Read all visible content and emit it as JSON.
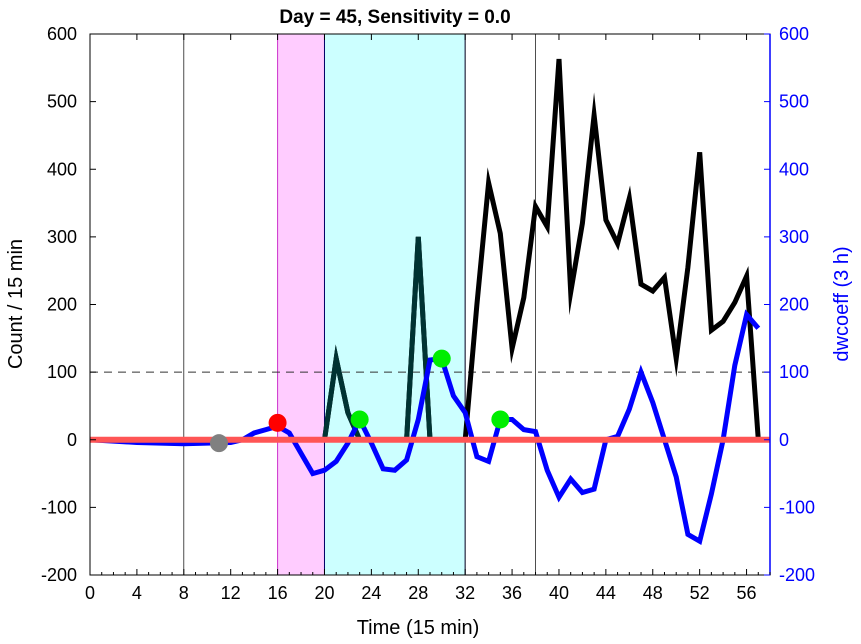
{
  "chart_data": {
    "type": "line",
    "title": "Day = 45, Sensitivity = 0.0",
    "xlabel": "Time (15 min)",
    "ylabel": "Count / 15 min",
    "y2label": "dwcoeff (3 h)",
    "xlim": [
      0,
      58
    ],
    "ylim": [
      -200,
      600
    ],
    "y2lim": [
      -200,
      600
    ],
    "xticks": [
      0,
      4,
      8,
      12,
      16,
      20,
      24,
      28,
      32,
      36,
      40,
      44,
      48,
      52,
      56
    ],
    "yticks": [
      -200,
      -100,
      0,
      100,
      200,
      300,
      400,
      500,
      600
    ],
    "y2ticks": [
      -200,
      -100,
      0,
      100,
      200,
      300,
      400,
      500,
      600
    ],
    "grid": false,
    "bands": [
      {
        "x0": 16,
        "x1": 20,
        "color": "#ffccff",
        "edge": "#cc33cc"
      },
      {
        "x0": 20,
        "x1": 32,
        "color": "#ccffff",
        "edge": "#000066"
      }
    ],
    "vlines": [
      8,
      32,
      38
    ],
    "hline_dashed": 100,
    "series": [
      {
        "axis": "left",
        "color": "#000000",
        "x": [
          0,
          19,
          20,
          21,
          22,
          23,
          27,
          28,
          29,
          32,
          33,
          34,
          35,
          36,
          37,
          38,
          39,
          40,
          41,
          42,
          43,
          44,
          45,
          46,
          47,
          48,
          49,
          50,
          51,
          52,
          53,
          54,
          55,
          56,
          57,
          58
        ],
        "y": [
          0,
          0,
          0,
          120,
          40,
          0,
          0,
          300,
          0,
          0,
          200,
          380,
          305,
          135,
          210,
          345,
          315,
          563,
          218,
          320,
          480,
          325,
          290,
          357,
          230,
          220,
          240,
          120,
          255,
          425,
          162,
          175,
          203,
          242,
          0,
          0
        ]
      },
      {
        "axis": "left",
        "color": "#003333",
        "x": [
          20,
          21,
          22,
          23,
          27,
          28,
          29,
          30
        ],
        "y": [
          0,
          120,
          40,
          0,
          0,
          300,
          0,
          0
        ]
      },
      {
        "axis": "right",
        "color": "#0000ff",
        "x": [
          0,
          2,
          4,
          6,
          8,
          10,
          12,
          13,
          14,
          15,
          16,
          17,
          18,
          19,
          20,
          21,
          22,
          23,
          24,
          25,
          26,
          27,
          28,
          29,
          30,
          31,
          32,
          33,
          34,
          35,
          36,
          37,
          38,
          39,
          40,
          41,
          42,
          43,
          44,
          45,
          46,
          47,
          48,
          49,
          50,
          51,
          52,
          53,
          54,
          55,
          56,
          57
        ],
        "y": [
          0,
          -2,
          -4,
          -5,
          -6,
          -5,
          -4,
          0,
          10,
          15,
          20,
          10,
          -20,
          -50,
          -45,
          -32,
          -5,
          30,
          -5,
          -43,
          -45,
          -30,
          30,
          118,
          120,
          65,
          40,
          -25,
          -32,
          30,
          30,
          15,
          12,
          -45,
          -85,
          -58,
          -78,
          -73,
          0,
          5,
          45,
          100,
          55,
          0,
          -55,
          -140,
          -150,
          -80,
          0,
          110,
          185,
          165
        ]
      },
      {
        "axis": "left",
        "color": "#ff5555",
        "x": [
          0,
          58
        ],
        "y": [
          0,
          0
        ]
      }
    ],
    "markers": [
      {
        "x": 11,
        "y": -5,
        "color": "#808080"
      },
      {
        "x": 16,
        "y": 25,
        "color": "#ff0000"
      },
      {
        "x": 23,
        "y": 30,
        "color": "#00ee00"
      },
      {
        "x": 30,
        "y": 120,
        "color": "#00ee00"
      },
      {
        "x": 35,
        "y": 30,
        "color": "#00ee00"
      }
    ]
  }
}
